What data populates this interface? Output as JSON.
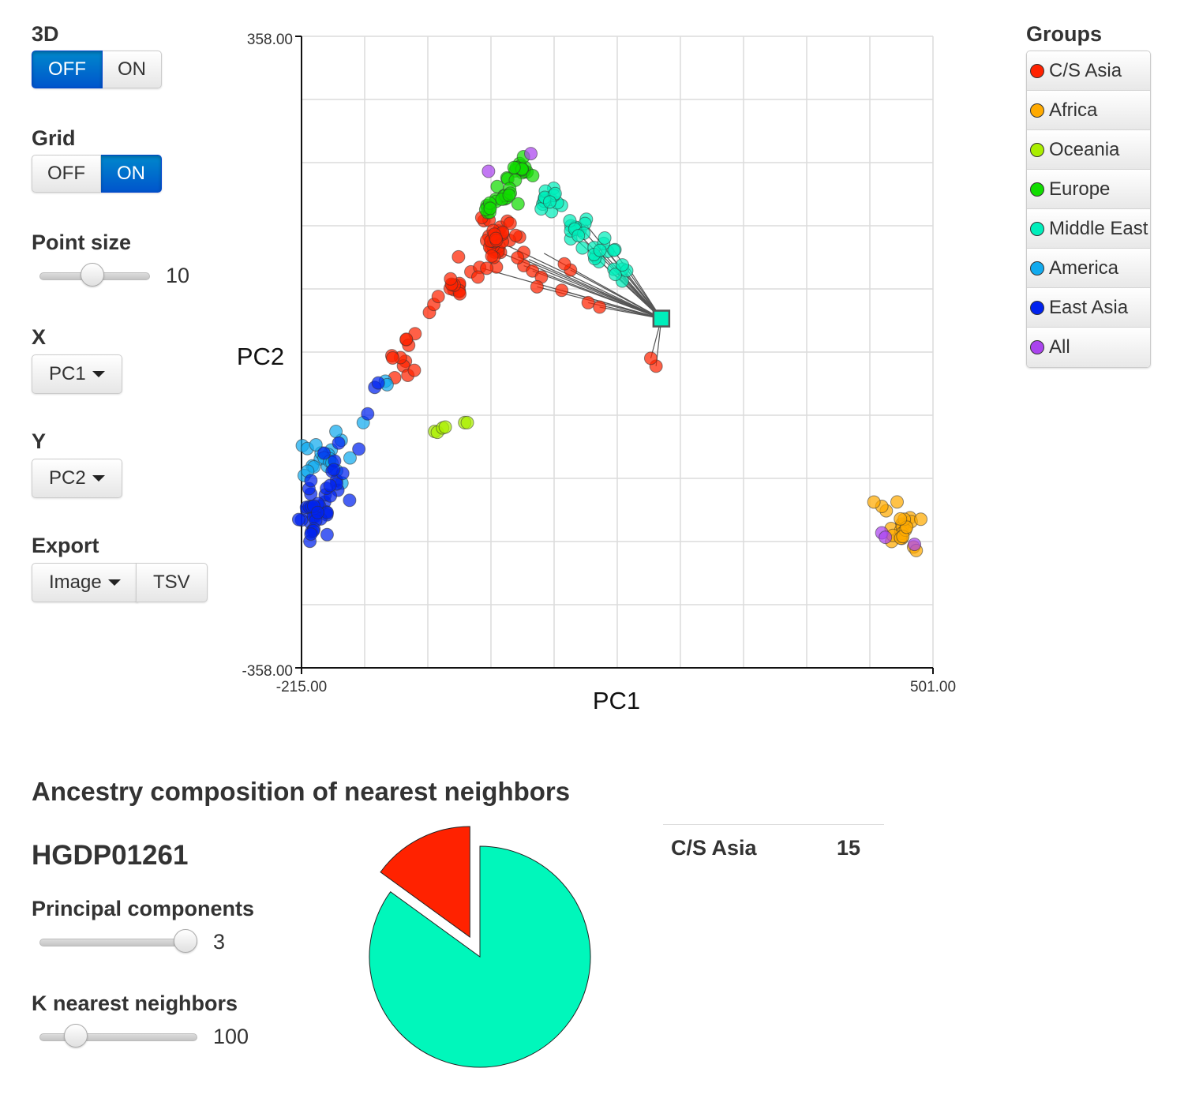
{
  "controls": {
    "threed": {
      "label": "3D",
      "off": "OFF",
      "on": "ON",
      "active": "off"
    },
    "grid": {
      "label": "Grid",
      "off": "OFF",
      "on": "ON",
      "active": "on"
    },
    "point_size": {
      "label": "Point size",
      "value": "10",
      "fraction": 0.47
    },
    "x_axis": {
      "label": "X",
      "selected": "PC1"
    },
    "y_axis": {
      "label": "Y",
      "selected": "PC2"
    },
    "export": {
      "label": "Export",
      "image": "Image",
      "tsv": "TSV"
    }
  },
  "legend": {
    "title": "Groups",
    "items": [
      {
        "label": "C/S Asia",
        "color": "#ff2200"
      },
      {
        "label": "Africa",
        "color": "#ffaa00"
      },
      {
        "label": "Oceania",
        "color": "#aaee00"
      },
      {
        "label": "Europe",
        "color": "#11dd00"
      },
      {
        "label": "Middle East",
        "color": "#00eebb"
      },
      {
        "label": "America",
        "color": "#11aaee"
      },
      {
        "label": "East Asia",
        "color": "#0022ee"
      },
      {
        "label": "All",
        "color": "#aa44ee"
      }
    ]
  },
  "chart_data": [
    {
      "type": "scatter",
      "xlabel": "PC1",
      "ylabel": "PC2",
      "xlim": [
        -215,
        501
      ],
      "ylim": [
        -358,
        358
      ],
      "x_tick_labels": [
        "-215.00",
        "501.00"
      ],
      "y_tick_labels": [
        "358.00",
        "-358.00"
      ],
      "grid": true,
      "highlight": {
        "x": 193,
        "y": 38,
        "color": "#00eebb"
      },
      "series": [
        {
          "group": "C/S Asia",
          "color": "#ff2200",
          "clusters": [
            {
              "cx": 5,
              "cy": 125,
              "sx": 7,
              "sy": 14,
              "n": 28
            },
            {
              "cx": 10,
              "cy": 135,
              "sx": 10,
              "sy": 6,
              "n": 12
            },
            {
              "cx": -40,
              "cy": 75,
              "sx": 6,
              "sy": 6,
              "n": 10
            },
            {
              "cx": -102,
              "cy": -8,
              "sx": 9,
              "sy": 13,
              "n": 12
            }
          ],
          "points": [
            [
              -70,
              45
            ],
            [
              -65,
              54
            ],
            [
              -60,
              63
            ],
            [
              -46,
              83
            ],
            [
              -37,
              108
            ],
            [
              -23,
              91
            ],
            [
              -13,
              96
            ],
            [
              -15,
              85
            ],
            [
              37,
              98
            ],
            [
              47,
              92
            ],
            [
              57,
              85
            ],
            [
              52,
              74
            ],
            [
              80,
              70
            ],
            [
              110,
              56
            ],
            [
              123,
              51
            ],
            [
              90,
              93
            ],
            [
              83,
              100
            ],
            [
              37,
              113
            ],
            [
              30,
              107
            ],
            [
              -5,
              95
            ],
            [
              187,
              -16
            ],
            [
              181,
              -7
            ]
          ],
          "neighbor_points": [
            [
              -10,
              95
            ],
            [
              20,
              120
            ],
            [
              30,
              108
            ],
            [
              37,
              98
            ],
            [
              47,
              92
            ],
            [
              52,
              74
            ],
            [
              80,
              70
            ],
            [
              90,
              93
            ],
            [
              110,
              56
            ],
            [
              123,
              51
            ],
            [
              60,
              112
            ],
            [
              43,
              105
            ],
            [
              5,
              115
            ],
            [
              181,
              -7
            ],
            [
              187,
              -16
            ]
          ]
        },
        {
          "group": "Africa",
          "color": "#ffaa00",
          "clusters": [
            {
              "cx": 465,
              "cy": -203,
              "sx": 9,
              "sy": 10,
              "n": 20
            }
          ],
          "points": [
            [
              448,
              -180
            ],
            [
              443,
              -175
            ],
            [
              434,
              -170
            ],
            [
              479,
              -221
            ],
            [
              482,
              -225
            ]
          ]
        },
        {
          "group": "Oceania",
          "color": "#aaee00",
          "points": [
            [
              -64,
              -90
            ],
            [
              -61,
              -91
            ],
            [
              -55,
              -86
            ],
            [
              -52,
              -85
            ],
            [
              -30,
              -80
            ],
            [
              -27,
              -80
            ]
          ]
        },
        {
          "group": "Europe",
          "color": "#11dd00",
          "clusters": [
            {
              "cx": 33,
              "cy": 208,
              "sx": 8,
              "sy": 7,
              "n": 16
            },
            {
              "cx": 12,
              "cy": 180,
              "sx": 8,
              "sy": 8,
              "n": 14
            },
            {
              "cx": -3,
              "cy": 160,
              "sx": 5,
              "sy": 5,
              "n": 8
            }
          ]
        },
        {
          "group": "Middle East",
          "color": "#00eebb",
          "clusters": [
            {
              "cx": 67,
              "cy": 174,
              "sx": 7,
              "sy": 9,
              "n": 16
            },
            {
              "cx": 98,
              "cy": 140,
              "sx": 10,
              "sy": 7,
              "n": 12
            },
            {
              "cx": 126,
              "cy": 115,
              "sx": 10,
              "sy": 8,
              "n": 12
            },
            {
              "cx": 150,
              "cy": 90,
              "sx": 7,
              "sy": 6,
              "n": 6
            }
          ]
        },
        {
          "group": "America",
          "color": "#11aaee",
          "clusters": [
            {
              "cx": -190,
              "cy": -120,
              "sx": 12,
              "sy": 12,
              "n": 16
            }
          ],
          "points": [
            [
              -212,
              -140
            ],
            [
              -208,
              -135
            ],
            [
              -160,
              -120
            ],
            [
              -170,
              -100
            ],
            [
              -176,
              -90
            ],
            [
              -120,
              -33
            ],
            [
              -118,
              -37
            ],
            [
              -145,
              -80
            ]
          ]
        },
        {
          "group": "East Asia",
          "color": "#0022ee",
          "clusters": [
            {
              "cx": -200,
              "cy": -180,
              "sx": 8,
              "sy": 14,
              "n": 30
            },
            {
              "cx": -175,
              "cy": -140,
              "sx": 8,
              "sy": 12,
              "n": 14
            }
          ],
          "points": [
            [
              -132,
              -40
            ],
            [
              -128,
              -35
            ],
            [
              -140,
              -70
            ],
            [
              -150,
              -110
            ]
          ]
        },
        {
          "group": "All",
          "color": "#aa44ee",
          "points": [
            [
              -3,
              205
            ],
            [
              45,
              225
            ],
            [
              443,
              -205
            ],
            [
              447,
              -210
            ],
            [
              480,
              -218
            ]
          ]
        }
      ]
    },
    {
      "type": "pie",
      "title": "Ancestry composition of nearest neighbors",
      "sample": "HGDP01261",
      "slices": [
        {
          "label": "Middle East",
          "value": 85,
          "color": "#00f7bb"
        },
        {
          "label": "C/S Asia",
          "value": 15,
          "color": "#ff2200"
        }
      ],
      "table": [
        {
          "label": "C/S Asia",
          "value": "15"
        }
      ]
    }
  ],
  "neighbors": {
    "title": "Ancestry composition of nearest neighbors",
    "sample_id": "HGDP01261",
    "principal_components": {
      "label": "Principal components",
      "value": "3",
      "fraction": 1.0
    },
    "k_nearest": {
      "label": "K nearest neighbors",
      "value": "100",
      "fraction": 0.18
    }
  }
}
